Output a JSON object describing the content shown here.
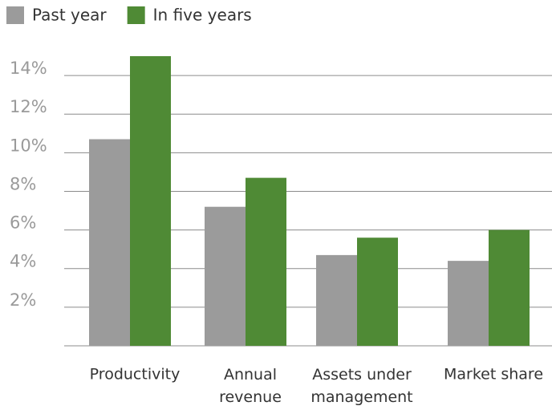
{
  "chart_data": {
    "type": "bar",
    "categories": [
      "Productivity",
      "Annual\nrevenue",
      "Assets under\nmanagement",
      "Market share"
    ],
    "series": [
      {
        "name": "Past year",
        "color": "#9b9b9b",
        "values": [
          10.7,
          7.2,
          4.7,
          4.4
        ]
      },
      {
        "name": "In five years",
        "color": "#4f8a35",
        "values": [
          15.0,
          8.7,
          5.6,
          6.0
        ]
      }
    ],
    "ylim": [
      0,
      15
    ],
    "yticks": [
      {
        "value": 2,
        "label": "2%"
      },
      {
        "value": 4,
        "label": "4%"
      },
      {
        "value": 6,
        "label": "6%"
      },
      {
        "value": 8,
        "label": "8%"
      },
      {
        "value": 10,
        "label": "10%"
      },
      {
        "value": 12,
        "label": "12%"
      },
      {
        "value": 14,
        "label": "14%"
      }
    ],
    "grid": true,
    "legend": "top"
  }
}
